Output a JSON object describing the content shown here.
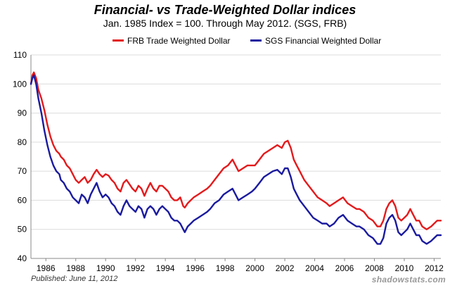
{
  "chart_data": {
    "type": "line",
    "title": "Financial- vs Trade-Weighted Dollar indices",
    "subtitle": "Jan. 1985 Index = 100.  Through May 2012.  (SGS, FRB)",
    "xlabel": "",
    "ylabel": "",
    "xlim": [
      1985.0,
      2012.45
    ],
    "ylim": [
      40,
      110
    ],
    "yticks": [
      40,
      50,
      60,
      70,
      80,
      90,
      100,
      110
    ],
    "ytick_labels": [
      "40",
      "50",
      "60",
      "70",
      "80",
      "90",
      "100",
      "110"
    ],
    "xticks": [
      1986,
      1988,
      1990,
      1992,
      1994,
      1996,
      1998,
      2000,
      2002,
      2004,
      2006,
      2008,
      2010,
      2012
    ],
    "xtick_labels": [
      "1986",
      "1988",
      "1990",
      "1992",
      "1994",
      "1996",
      "1998",
      "2000",
      "2002",
      "2004",
      "2006",
      "2008",
      "2010",
      "2012"
    ],
    "grid": "horizontal",
    "legend_position": "top",
    "series": [
      {
        "name": "FRB Trade Weighted Dollar",
        "color": "#e41a1c",
        "points": [
          [
            1985.0,
            100
          ],
          [
            1985.1,
            103
          ],
          [
            1985.2,
            104
          ],
          [
            1985.35,
            102
          ],
          [
            1985.5,
            98
          ],
          [
            1985.7,
            95
          ],
          [
            1985.9,
            91
          ],
          [
            1986.1,
            86
          ],
          [
            1986.3,
            82
          ],
          [
            1986.5,
            79
          ],
          [
            1986.7,
            77
          ],
          [
            1986.9,
            76
          ],
          [
            1987.0,
            75
          ],
          [
            1987.2,
            74
          ],
          [
            1987.4,
            72
          ],
          [
            1987.6,
            71
          ],
          [
            1987.8,
            69
          ],
          [
            1988.0,
            67
          ],
          [
            1988.2,
            66
          ],
          [
            1988.4,
            67
          ],
          [
            1988.6,
            68
          ],
          [
            1988.8,
            66
          ],
          [
            1989.0,
            67
          ],
          [
            1989.2,
            69
          ],
          [
            1989.4,
            70.5
          ],
          [
            1989.6,
            69
          ],
          [
            1989.8,
            68
          ],
          [
            1990.0,
            69
          ],
          [
            1990.2,
            68.5
          ],
          [
            1990.4,
            67
          ],
          [
            1990.6,
            66
          ],
          [
            1990.8,
            64
          ],
          [
            1991.0,
            63
          ],
          [
            1991.2,
            66
          ],
          [
            1991.4,
            67
          ],
          [
            1991.6,
            65.5
          ],
          [
            1991.8,
            64
          ],
          [
            1992.0,
            63
          ],
          [
            1992.2,
            65
          ],
          [
            1992.4,
            64
          ],
          [
            1992.6,
            61.5
          ],
          [
            1992.8,
            64
          ],
          [
            1993.0,
            66
          ],
          [
            1993.2,
            64
          ],
          [
            1993.4,
            63
          ],
          [
            1993.6,
            65
          ],
          [
            1993.8,
            65
          ],
          [
            1994.0,
            64
          ],
          [
            1994.2,
            63
          ],
          [
            1994.4,
            61
          ],
          [
            1994.6,
            60
          ],
          [
            1994.8,
            60
          ],
          [
            1995.0,
            61
          ],
          [
            1995.2,
            58
          ],
          [
            1995.3,
            57.5
          ],
          [
            1995.5,
            59
          ],
          [
            1995.7,
            60
          ],
          [
            1995.9,
            61
          ],
          [
            1996.2,
            62
          ],
          [
            1996.5,
            63
          ],
          [
            1996.8,
            64
          ],
          [
            1997.0,
            65
          ],
          [
            1997.3,
            67
          ],
          [
            1997.6,
            69
          ],
          [
            1997.9,
            71
          ],
          [
            1998.2,
            72
          ],
          [
            1998.5,
            74
          ],
          [
            1998.7,
            72
          ],
          [
            1998.9,
            70
          ],
          [
            1999.2,
            71
          ],
          [
            1999.5,
            72
          ],
          [
            1999.8,
            72
          ],
          [
            2000.0,
            72
          ],
          [
            2000.3,
            74
          ],
          [
            2000.6,
            76
          ],
          [
            2000.9,
            77
          ],
          [
            2001.2,
            78
          ],
          [
            2001.5,
            79
          ],
          [
            2001.8,
            78
          ],
          [
            2002.0,
            80
          ],
          [
            2002.2,
            80.5
          ],
          [
            2002.4,
            78
          ],
          [
            2002.6,
            74
          ],
          [
            2002.8,
            72
          ],
          [
            2003.0,
            70
          ],
          [
            2003.3,
            67
          ],
          [
            2003.6,
            65
          ],
          [
            2003.9,
            63
          ],
          [
            2004.2,
            61
          ],
          [
            2004.5,
            60
          ],
          [
            2004.8,
            59
          ],
          [
            2005.0,
            58
          ],
          [
            2005.3,
            59
          ],
          [
            2005.6,
            60
          ],
          [
            2005.9,
            61
          ],
          [
            2006.2,
            59
          ],
          [
            2006.5,
            58
          ],
          [
            2006.8,
            57
          ],
          [
            2007.0,
            57
          ],
          [
            2007.3,
            56
          ],
          [
            2007.6,
            54
          ],
          [
            2007.9,
            53
          ],
          [
            2008.2,
            51
          ],
          [
            2008.4,
            51
          ],
          [
            2008.6,
            53
          ],
          [
            2008.8,
            57
          ],
          [
            2009.0,
            59
          ],
          [
            2009.2,
            60
          ],
          [
            2009.4,
            58
          ],
          [
            2009.6,
            54
          ],
          [
            2009.8,
            53
          ],
          [
            2010.0,
            54
          ],
          [
            2010.2,
            55
          ],
          [
            2010.4,
            57
          ],
          [
            2010.6,
            55
          ],
          [
            2010.8,
            53
          ],
          [
            2011.0,
            53
          ],
          [
            2011.2,
            51
          ],
          [
            2011.5,
            50
          ],
          [
            2011.8,
            51
          ],
          [
            2012.0,
            52
          ],
          [
            2012.2,
            53
          ],
          [
            2012.45,
            53
          ]
        ]
      },
      {
        "name": "SGS Financial Weighted Dollar",
        "color": "#1a1aa0",
        "points": [
          [
            1985.0,
            100
          ],
          [
            1985.1,
            102
          ],
          [
            1985.2,
            103
          ],
          [
            1985.35,
            100
          ],
          [
            1985.5,
            95
          ],
          [
            1985.7,
            90
          ],
          [
            1985.9,
            84
          ],
          [
            1986.1,
            79
          ],
          [
            1986.3,
            75
          ],
          [
            1986.5,
            72
          ],
          [
            1986.7,
            70
          ],
          [
            1986.9,
            69
          ],
          [
            1987.0,
            67
          ],
          [
            1987.2,
            66
          ],
          [
            1987.4,
            64
          ],
          [
            1987.6,
            63
          ],
          [
            1987.8,
            61
          ],
          [
            1988.0,
            60
          ],
          [
            1988.2,
            59
          ],
          [
            1988.4,
            62
          ],
          [
            1988.6,
            61
          ],
          [
            1988.8,
            59
          ],
          [
            1989.0,
            62
          ],
          [
            1989.2,
            64
          ],
          [
            1989.4,
            66
          ],
          [
            1989.6,
            63
          ],
          [
            1989.8,
            61
          ],
          [
            1990.0,
            62
          ],
          [
            1990.2,
            61
          ],
          [
            1990.4,
            59
          ],
          [
            1990.6,
            58
          ],
          [
            1990.8,
            56
          ],
          [
            1991.0,
            55
          ],
          [
            1991.2,
            58
          ],
          [
            1991.4,
            60
          ],
          [
            1991.6,
            58
          ],
          [
            1991.8,
            57
          ],
          [
            1992.0,
            56
          ],
          [
            1992.2,
            58
          ],
          [
            1992.4,
            57
          ],
          [
            1992.6,
            54
          ],
          [
            1992.8,
            57
          ],
          [
            1993.0,
            58
          ],
          [
            1993.2,
            57
          ],
          [
            1993.4,
            55
          ],
          [
            1993.6,
            57
          ],
          [
            1993.8,
            58
          ],
          [
            1994.0,
            57
          ],
          [
            1994.2,
            56
          ],
          [
            1994.4,
            54
          ],
          [
            1994.6,
            53
          ],
          [
            1994.8,
            53
          ],
          [
            1995.0,
            52
          ],
          [
            1995.2,
            50
          ],
          [
            1995.3,
            49
          ],
          [
            1995.5,
            51
          ],
          [
            1995.7,
            52
          ],
          [
            1995.9,
            53
          ],
          [
            1996.2,
            54
          ],
          [
            1996.5,
            55
          ],
          [
            1996.8,
            56
          ],
          [
            1997.0,
            57
          ],
          [
            1997.3,
            59
          ],
          [
            1997.6,
            60
          ],
          [
            1997.9,
            62
          ],
          [
            1998.2,
            63
          ],
          [
            1998.5,
            64
          ],
          [
            1998.7,
            62
          ],
          [
            1998.9,
            60
          ],
          [
            1999.2,
            61
          ],
          [
            1999.5,
            62
          ],
          [
            1999.8,
            63
          ],
          [
            2000.0,
            64
          ],
          [
            2000.3,
            66
          ],
          [
            2000.6,
            68
          ],
          [
            2000.9,
            69
          ],
          [
            2001.2,
            70
          ],
          [
            2001.5,
            70.5
          ],
          [
            2001.8,
            69
          ],
          [
            2002.0,
            71
          ],
          [
            2002.2,
            71
          ],
          [
            2002.4,
            68
          ],
          [
            2002.6,
            64
          ],
          [
            2002.8,
            62
          ],
          [
            2003.0,
            60
          ],
          [
            2003.3,
            58
          ],
          [
            2003.6,
            56
          ],
          [
            2003.9,
            54
          ],
          [
            2004.2,
            53
          ],
          [
            2004.5,
            52
          ],
          [
            2004.8,
            52
          ],
          [
            2005.0,
            51
          ],
          [
            2005.3,
            52
          ],
          [
            2005.6,
            54
          ],
          [
            2005.9,
            55
          ],
          [
            2006.2,
            53
          ],
          [
            2006.5,
            52
          ],
          [
            2006.8,
            51
          ],
          [
            2007.0,
            51
          ],
          [
            2007.3,
            50
          ],
          [
            2007.6,
            48
          ],
          [
            2007.9,
            47
          ],
          [
            2008.2,
            45
          ],
          [
            2008.4,
            45
          ],
          [
            2008.6,
            47
          ],
          [
            2008.8,
            52
          ],
          [
            2009.0,
            54
          ],
          [
            2009.2,
            55
          ],
          [
            2009.4,
            53
          ],
          [
            2009.6,
            49
          ],
          [
            2009.8,
            48
          ],
          [
            2010.0,
            49
          ],
          [
            2010.2,
            50
          ],
          [
            2010.4,
            52
          ],
          [
            2010.6,
            50
          ],
          [
            2010.8,
            48
          ],
          [
            2011.0,
            48
          ],
          [
            2011.2,
            46
          ],
          [
            2011.5,
            45
          ],
          [
            2011.8,
            46
          ],
          [
            2012.0,
            47
          ],
          [
            2012.2,
            48
          ],
          [
            2012.45,
            48
          ]
        ]
      }
    ]
  },
  "footer": {
    "published": "Published: June 11, 2012",
    "credit": "shadowstats.com"
  }
}
